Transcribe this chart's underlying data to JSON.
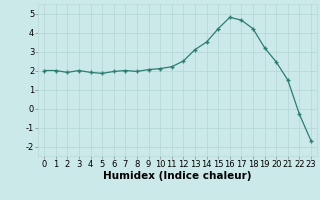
{
  "xlabel": "Humidex (Indice chaleur)",
  "ylabel": "",
  "x": [
    0,
    1,
    2,
    3,
    4,
    5,
    6,
    7,
    8,
    9,
    10,
    11,
    12,
    13,
    14,
    15,
    16,
    17,
    18,
    19,
    20,
    21,
    22,
    23
  ],
  "y": [
    2.0,
    2.0,
    1.9,
    2.0,
    1.9,
    1.85,
    1.95,
    2.0,
    1.95,
    2.05,
    2.1,
    2.2,
    2.5,
    3.1,
    3.5,
    4.2,
    4.8,
    4.65,
    4.2,
    3.2,
    2.45,
    1.5,
    -0.3,
    -1.7
  ],
  "line_color": "#2d7d72",
  "marker": "+",
  "marker_size": 3,
  "marker_linewidth": 1.0,
  "line_width": 0.9,
  "background_color": "#cce9e9",
  "grid_color": "#b8d8d8",
  "ylim": [
    -2.5,
    5.5
  ],
  "xlim": [
    -0.5,
    23.5
  ],
  "yticks": [
    -2,
    -1,
    0,
    1,
    2,
    3,
    4,
    5
  ],
  "xticks": [
    0,
    1,
    2,
    3,
    4,
    5,
    6,
    7,
    8,
    9,
    10,
    11,
    12,
    13,
    14,
    15,
    16,
    17,
    18,
    19,
    20,
    21,
    22,
    23
  ],
  "xlabel_fontsize": 7.5,
  "tick_fontsize": 6.0,
  "figwidth": 3.2,
  "figheight": 2.0,
  "dpi": 100
}
